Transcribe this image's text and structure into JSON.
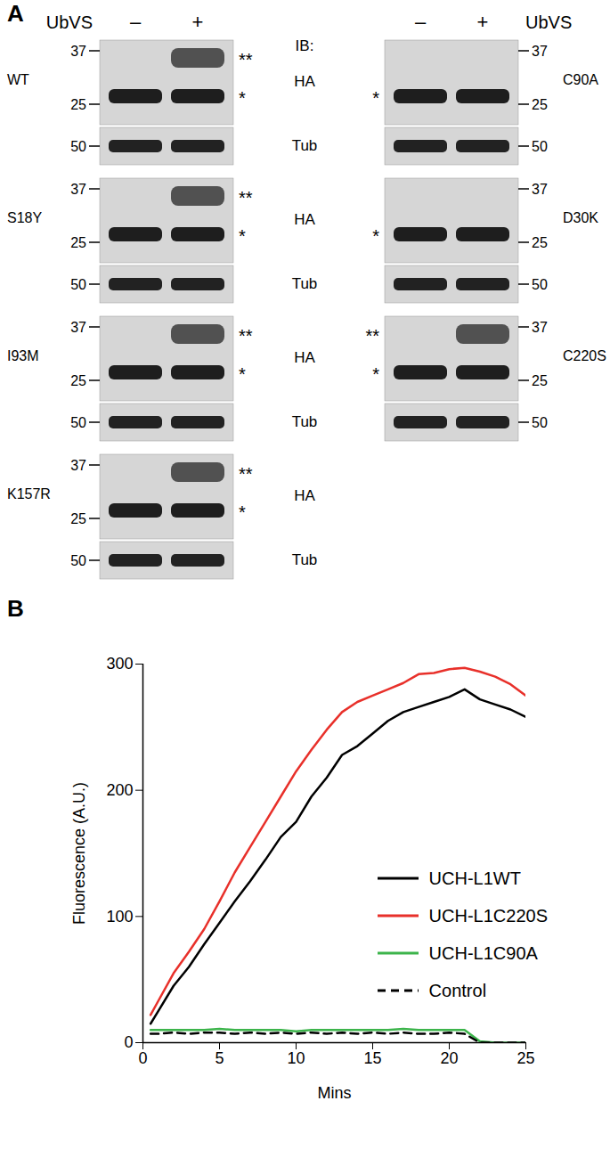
{
  "panel_labels": [
    "A",
    "B"
  ],
  "blot_panel": {
    "treatment": "UbVS",
    "lanes": [
      "–",
      "+"
    ],
    "probe_header": "IB:",
    "probes": [
      "HA",
      "Tub"
    ],
    "columns": [
      [
        {
          "name": "WT",
          "ha_markers": [
            37,
            25
          ],
          "tub_markers": [
            50
          ],
          "band_labels": [
            "**",
            "*"
          ]
        },
        {
          "name": "S18Y",
          "ha_markers": [
            37,
            25
          ],
          "tub_markers": [
            50
          ],
          "band_labels": [
            "**",
            "*"
          ]
        },
        {
          "name": "I93M",
          "ha_markers": [
            37,
            25
          ],
          "tub_markers": [
            50
          ],
          "band_labels": [
            "**",
            "*"
          ]
        },
        {
          "name": "K157R",
          "ha_markers": [
            37,
            25
          ],
          "tub_markers": [
            50
          ],
          "band_labels": [
            "**",
            "*"
          ]
        }
      ],
      [
        {
          "name": "C90A",
          "ha_markers": [
            37,
            25
          ],
          "tub_markers": [
            50
          ],
          "band_labels": [
            "*"
          ]
        },
        {
          "name": "D30K",
          "ha_markers": [
            37,
            25
          ],
          "tub_markers": [
            50
          ],
          "band_labels": [
            "*"
          ]
        },
        {
          "name": "C220S",
          "ha_markers": [
            37,
            25
          ],
          "tub_markers": [
            50
          ],
          "band_labels": [
            "**",
            "*"
          ]
        }
      ]
    ]
  },
  "chart_data": {
    "type": "line",
    "x_label": "Mins",
    "y_label": "Fluorescence (A.U.)",
    "x": [
      0.5,
      1,
      2,
      3,
      4,
      5,
      6,
      7,
      8,
      9,
      10,
      11,
      12,
      13,
      14,
      15,
      16,
      17,
      18,
      19,
      20,
      21,
      22,
      23,
      24,
      25
    ],
    "series": [
      {
        "name": "UCH-L1WT",
        "color": "#000000",
        "line_style": "solid",
        "values": [
          15,
          25,
          45,
          60,
          78,
          95,
          112,
          128,
          145,
          163,
          175,
          195,
          210,
          228,
          235,
          245,
          255,
          262,
          266,
          270,
          274,
          280,
          272,
          268,
          264,
          258
        ]
      },
      {
        "name": "UCH-L1C220S",
        "color": "#e8302a",
        "line_style": "solid",
        "values": [
          22,
          33,
          55,
          72,
          90,
          112,
          135,
          155,
          175,
          195,
          215,
          232,
          248,
          262,
          270,
          275,
          280,
          285,
          292,
          293,
          296,
          297,
          294,
          290,
          284,
          275
        ]
      },
      {
        "name": "UCH-L1C90A",
        "color": "#3cb44b",
        "line_style": "solid",
        "values": [
          10,
          10,
          10,
          10,
          10,
          11,
          10,
          10,
          10,
          10,
          9,
          10,
          10,
          10,
          10,
          10,
          10,
          11,
          10,
          10,
          10,
          10,
          1,
          0,
          0,
          0
        ]
      },
      {
        "name": "Control",
        "color": "#000000",
        "line_style": "dashed",
        "values": [
          7,
          7,
          8,
          7,
          8,
          8,
          7,
          8,
          7,
          8,
          7,
          8,
          7,
          8,
          7,
          8,
          7,
          8,
          7,
          7,
          8,
          7,
          0,
          0,
          0,
          0
        ]
      }
    ],
    "xlim": [
      0,
      25
    ],
    "xticks": [
      0,
      5,
      10,
      15,
      20,
      25
    ],
    "ylim": [
      0,
      300
    ],
    "yticks": [
      0,
      100,
      200,
      300
    ],
    "legend": "right"
  }
}
